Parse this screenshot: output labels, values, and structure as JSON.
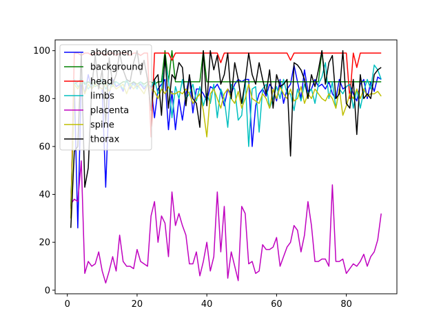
{
  "chart_data": {
    "type": "line",
    "title": "",
    "xlabel": "",
    "ylabel": "",
    "xlim": [
      -3.5,
      94.5
    ],
    "ylim": [
      -1.5,
      104.5
    ],
    "x_ticks": [
      0,
      20,
      40,
      60,
      80
    ],
    "y_ticks": [
      0,
      20,
      40,
      60,
      80,
      100
    ],
    "legend_position": "top-left",
    "x": [
      1,
      2,
      3,
      4,
      5,
      6,
      7,
      8,
      9,
      10,
      11,
      12,
      13,
      14,
      15,
      16,
      17,
      18,
      19,
      20,
      21,
      22,
      23,
      24,
      25,
      26,
      27,
      28,
      29,
      30,
      31,
      32,
      33,
      34,
      35,
      36,
      37,
      38,
      39,
      40,
      41,
      42,
      43,
      44,
      45,
      46,
      47,
      48,
      49,
      50,
      51,
      52,
      53,
      54,
      55,
      56,
      57,
      58,
      59,
      60,
      61,
      62,
      63,
      64,
      65,
      66,
      67,
      68,
      69,
      70,
      71,
      72,
      73,
      74,
      75,
      76,
      77,
      78,
      79,
      80,
      81,
      82,
      83,
      84,
      85,
      86,
      87,
      88,
      89,
      90
    ],
    "series": [
      {
        "name": "abdomen",
        "color": "#0000ff",
        "values": [
          34,
          86,
          26,
          88,
          82,
          90,
          84,
          86,
          85,
          84,
          43,
          82,
          88,
          85,
          86,
          83,
          88,
          84,
          87,
          85,
          86,
          84,
          86,
          85,
          72,
          84,
          86,
          88,
          67,
          83,
          67,
          80,
          71,
          82,
          89,
          74,
          84,
          84,
          82,
          79,
          85,
          84,
          86,
          83,
          77,
          84,
          82,
          86,
          88,
          87,
          88,
          88,
          60,
          77,
          82,
          84,
          81,
          86,
          84,
          79,
          88,
          78,
          84,
          86,
          94,
          87,
          80,
          92,
          83,
          84,
          88,
          85,
          86,
          84,
          87,
          82,
          80,
          88,
          84,
          85,
          86,
          82,
          79,
          86,
          88,
          80,
          87,
          83,
          89,
          88
        ]
      },
      {
        "name": "background",
        "color": "#008000",
        "values": [
          35,
          86,
          87,
          88,
          86,
          87,
          86,
          87,
          87,
          86,
          87,
          86,
          87,
          87,
          86,
          87,
          87,
          86,
          87,
          86,
          87,
          86,
          87,
          87,
          86,
          87,
          87,
          100,
          87,
          100,
          87,
          87,
          87,
          87,
          87,
          87,
          87,
          87,
          100,
          87,
          87,
          87,
          87,
          87,
          87,
          87,
          87,
          87,
          87,
          87,
          87,
          87,
          87,
          87,
          87,
          87,
          87,
          87,
          87,
          87,
          87,
          87,
          87,
          87,
          87,
          87,
          87,
          87,
          87,
          87,
          87,
          87,
          100,
          87,
          87,
          87,
          87,
          87,
          87,
          87,
          87,
          87,
          87,
          87,
          87,
          87,
          87,
          87,
          87,
          87
        ]
      },
      {
        "name": "head",
        "color": "#ff0000",
        "values": [
          30,
          99,
          99,
          98,
          99,
          99,
          98,
          99,
          99,
          99,
          98,
          99,
          99,
          98,
          99,
          99,
          99,
          98,
          99,
          99,
          98,
          99,
          99,
          64,
          99,
          99,
          99,
          99,
          99,
          96,
          99,
          99,
          99,
          99,
          99,
          99,
          99,
          99,
          99,
          99,
          99,
          99,
          99,
          95,
          99,
          99,
          99,
          99,
          99,
          99,
          99,
          99,
          99,
          99,
          99,
          99,
          99,
          99,
          99,
          99,
          99,
          99,
          99,
          96,
          99,
          99,
          99,
          99,
          99,
          99,
          99,
          99,
          99,
          99,
          99,
          99,
          99,
          99,
          99,
          99,
          80,
          99,
          93,
          99,
          99,
          99,
          99,
          99,
          99,
          99
        ]
      },
      {
        "name": "limbs",
        "color": "#00bfbf",
        "values": [
          30,
          88,
          85,
          86,
          87,
          84,
          86,
          85,
          86,
          88,
          84,
          86,
          85,
          87,
          86,
          84,
          88,
          85,
          86,
          84,
          87,
          85,
          86,
          84,
          88,
          82,
          84,
          95,
          88,
          72,
          85,
          80,
          88,
          80,
          82,
          86,
          79,
          85,
          77,
          82,
          78,
          86,
          72,
          84,
          80,
          68,
          86,
          84,
          71,
          73,
          88,
          60,
          84,
          85,
          66,
          84,
          86,
          76,
          80,
          85,
          80,
          88,
          82,
          82,
          75,
          84,
          79,
          86,
          82,
          84,
          78,
          86,
          89,
          95,
          80,
          87,
          76,
          84,
          82,
          85,
          86,
          76,
          84,
          76,
          83,
          88,
          84,
          94,
          92,
          88
        ]
      },
      {
        "name": "placenta",
        "color": "#bf00bf",
        "values": [
          36,
          38,
          37,
          54,
          7,
          12,
          10,
          11,
          16,
          8,
          3,
          8,
          14,
          8,
          23,
          12,
          10,
          10,
          9,
          17,
          12,
          11,
          10,
          31,
          37,
          20,
          31,
          28,
          14,
          41,
          27,
          32,
          27,
          23,
          11,
          11,
          16,
          6,
          12,
          20,
          8,
          14,
          41,
          16,
          35,
          5,
          16,
          10,
          4,
          35,
          32,
          11,
          12,
          7,
          8,
          19,
          17,
          17,
          18,
          22,
          10,
          14,
          18,
          20,
          27,
          25,
          16,
          23,
          37,
          27,
          12,
          12,
          13,
          13,
          10,
          44,
          12,
          12,
          13,
          7,
          9,
          11,
          10,
          12,
          15,
          10,
          14,
          16,
          21,
          32
        ]
      },
      {
        "name": "spine",
        "color": "#bfbf00",
        "values": [
          30,
          86,
          84,
          87,
          82,
          86,
          84,
          86,
          85,
          84,
          86,
          83,
          86,
          84,
          85,
          86,
          82,
          86,
          84,
          86,
          84,
          82,
          86,
          84,
          83,
          80,
          84,
          82,
          85,
          82,
          82,
          83,
          82,
          84,
          82,
          78,
          80,
          82,
          75,
          64,
          82,
          84,
          80,
          76,
          82,
          84,
          80,
          78,
          83,
          76,
          80,
          86,
          80,
          79,
          78,
          82,
          80,
          76,
          84,
          80,
          85,
          82,
          80,
          84,
          79,
          80,
          85,
          78,
          82,
          80,
          84,
          82,
          80,
          79,
          82,
          80,
          76,
          84,
          73,
          77,
          82,
          80,
          84,
          80,
          84,
          81,
          82,
          82,
          83,
          81
        ]
      },
      {
        "name": "thorax",
        "color": "#000000",
        "values": [
          26,
          58,
          60,
          99,
          43,
          51,
          85,
          98,
          84,
          92,
          70,
          97,
          86,
          90,
          99,
          92,
          88,
          87,
          95,
          100,
          90,
          96,
          88,
          75,
          88,
          90,
          73,
          98,
          76,
          90,
          88,
          95,
          93,
          77,
          90,
          80,
          78,
          68,
          100,
          77,
          100,
          92,
          98,
          86,
          90,
          99,
          80,
          95,
          88,
          78,
          87,
          99,
          90,
          86,
          95,
          88,
          82,
          92,
          76,
          90,
          85,
          86,
          88,
          56,
          95,
          94,
          92,
          88,
          80,
          90,
          85,
          92,
          100,
          86,
          95,
          98,
          80,
          82,
          100,
          78,
          76,
          88,
          65,
          90,
          80,
          82,
          80,
          90,
          92,
          93
        ]
      }
    ]
  }
}
